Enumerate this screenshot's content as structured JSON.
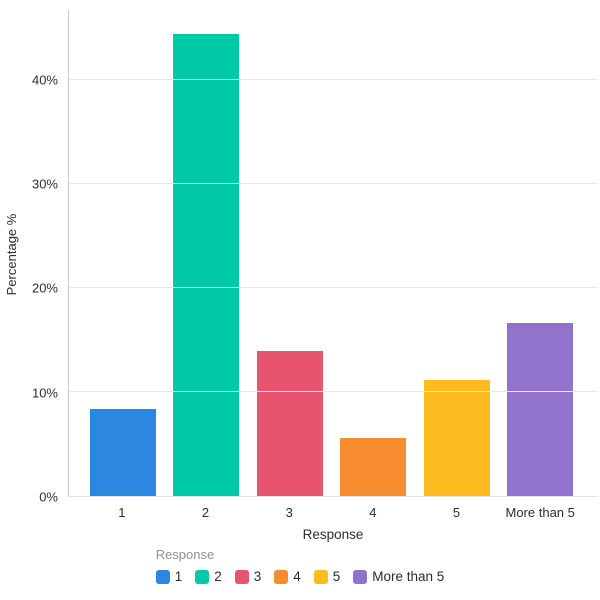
{
  "chart_data": {
    "type": "bar",
    "title": "",
    "categories": [
      "1",
      "2",
      "3",
      "4",
      "5",
      "More than 5"
    ],
    "values": [
      8.33,
      44.44,
      13.89,
      5.56,
      11.11,
      16.67
    ],
    "colors": [
      "#2D87E0",
      "#00C9A5",
      "#E8536F",
      "#F68C2E",
      "#FDBA21",
      "#9173CE"
    ],
    "xlabel": "Response",
    "ylabel": "Percentage %",
    "ylim": [
      0,
      46.7
    ],
    "yticks": [
      0,
      10,
      20,
      30,
      40
    ],
    "ytick_labels": [
      "0%",
      "10%",
      "20%",
      "30%",
      "40%"
    ],
    "grid": "horizontal",
    "legend": {
      "title": "Response",
      "position": "bottom",
      "items": [
        "1",
        "2",
        "3",
        "4",
        "5",
        "More than 5"
      ]
    }
  },
  "style_colors": {
    "background": "#ffffff",
    "axis_line": "#c8c8c8",
    "gridline": "#e9e9e9",
    "baseline": "#e4e4e4",
    "tick_text": "#2d2d2d",
    "axis_title_text": "#2d2d2d",
    "legend_title_text": "#8f8f8f",
    "legend_label_text": "#2b2b2b"
  }
}
